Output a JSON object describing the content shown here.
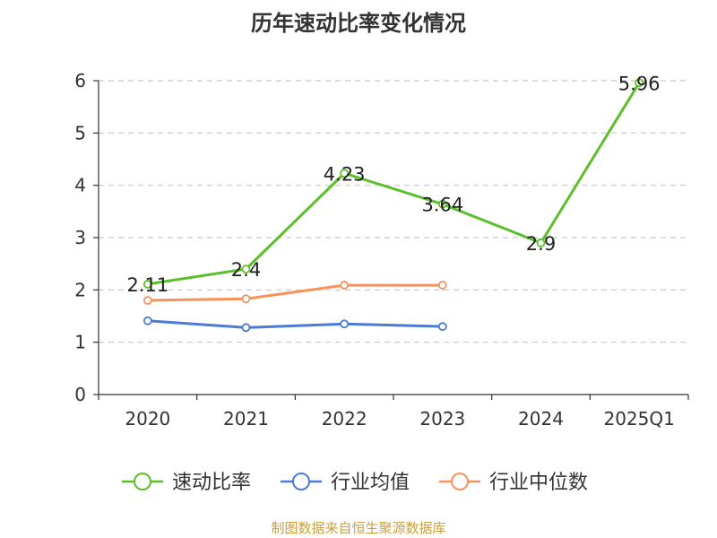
{
  "chart_data": {
    "type": "line",
    "title": "历年速动比率变化情况",
    "categories": [
      "2020",
      "2021",
      "2022",
      "2023",
      "2024",
      "2025Q1"
    ],
    "ylim": [
      0,
      6
    ],
    "yticks": [
      "0",
      "1",
      "2",
      "3",
      "4",
      "5",
      "6"
    ],
    "grid": true,
    "legend_position": "bottom",
    "series": [
      {
        "name": "速动比率",
        "color": "#5cbf2a",
        "values": [
          2.11,
          2.4,
          4.23,
          3.64,
          2.9,
          5.96
        ],
        "labels": [
          "2.11",
          "2.4",
          "4.23",
          "3.64",
          "2.9",
          "5.96"
        ]
      },
      {
        "name": "行业均值",
        "color": "#4b7bd5",
        "values": [
          1.41,
          1.28,
          1.35,
          1.3,
          null,
          null
        ]
      },
      {
        "name": "行业中位数",
        "color": "#f7925a",
        "values": [
          1.8,
          1.83,
          2.09,
          2.09,
          null,
          null
        ]
      }
    ]
  },
  "footer": {
    "source": "制图数据来自恒生聚源数据库"
  }
}
